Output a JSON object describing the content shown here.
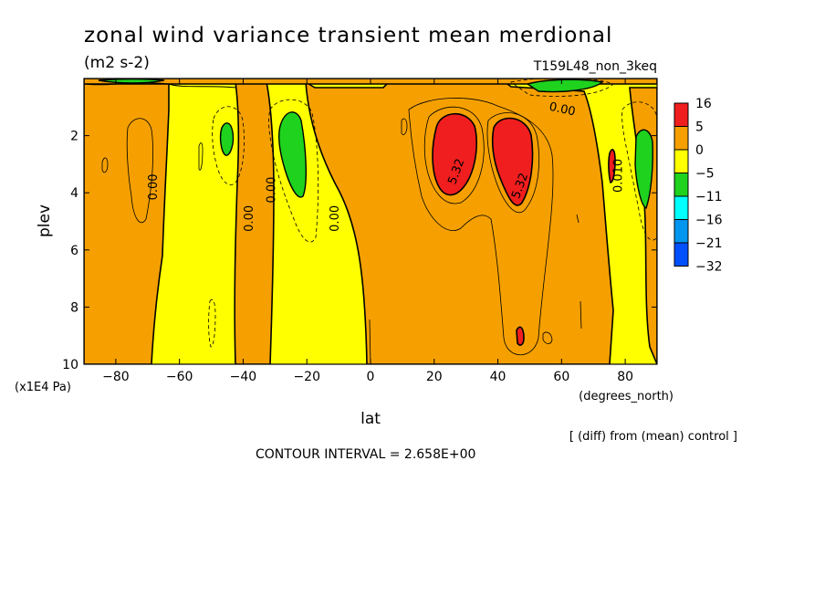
{
  "chart_data": {
    "type": "heatmap",
    "title": "zonal wind variance transient mean merdional",
    "units": "(m2 s-2)",
    "run_label": "T159L48_non_3keq",
    "xlabel": "lat",
    "xunits": "(degrees_north)",
    "ylabel": "plev",
    "yunits": "(x1E4 Pa)",
    "xlim": [
      -90,
      90
    ],
    "ylim": [
      10,
      0
    ],
    "x_ticks": [
      -80,
      -60,
      -40,
      -20,
      0,
      20,
      40,
      60,
      80
    ],
    "x_tick_labels": [
      "−80",
      "−60",
      "−40",
      "−20",
      "0",
      "20",
      "40",
      "60",
      "80"
    ],
    "y_ticks": [
      2,
      4,
      6,
      8,
      10
    ],
    "y_tick_labels": [
      "2",
      "4",
      "6",
      "8",
      "10"
    ],
    "colorbar": {
      "labels": [
        "16",
        "5",
        "0",
        "−5",
        "−11",
        "−16",
        "−21",
        "−32"
      ],
      "colors": [
        "#f01e1e",
        "#f5a000",
        "#ffff00",
        "#1ed21e",
        "#00ffff",
        "#0096f0",
        "#0050ff"
      ]
    },
    "contour_labels": [
      {
        "text": "0.00",
        "lat": -67,
        "plev": 3.8
      },
      {
        "text": "0.00",
        "lat": -37,
        "plev": 4.9
      },
      {
        "text": "0.00",
        "lat": -30,
        "plev": 3.9
      },
      {
        "text": "0.00",
        "lat": -10,
        "plev": 4.9
      },
      {
        "text": "5.32",
        "lat": 28,
        "plev": 3.3
      },
      {
        "text": "5.32",
        "lat": 48,
        "plev": 3.8
      },
      {
        "text": "0.00",
        "lat": 60,
        "plev": 1.2
      },
      {
        "text": "0.010",
        "lat": 79,
        "plev": 3.4
      }
    ],
    "regions": [
      {
        "level": "negative_strong",
        "lat": -45,
        "plev": 2.3,
        "value": -7
      },
      {
        "level": "negative_strong",
        "lat": -26,
        "plev": 2.8,
        "value": -8
      },
      {
        "level": "negative_strong",
        "lat": 84,
        "plev": 3.0,
        "value": -7
      },
      {
        "level": "negative_strong",
        "lat": 62,
        "plev": 0.3,
        "value": -6
      },
      {
        "level": "positive_strong",
        "lat": 26,
        "plev": 2.6,
        "value": 8
      },
      {
        "level": "positive_strong",
        "lat": 45,
        "plev": 2.8,
        "value": 8
      },
      {
        "level": "positive_strong",
        "lat": 75,
        "plev": 3.0,
        "value": 6
      },
      {
        "level": "positive_strong",
        "lat": 47,
        "plev": 9.1,
        "value": 6
      }
    ],
    "grid": false,
    "legend_position": "right"
  },
  "footer": {
    "diff_note": "[ (diff) from (mean) control ]",
    "contour_interval": "CONTOUR INTERVAL = 2.658E+00"
  }
}
